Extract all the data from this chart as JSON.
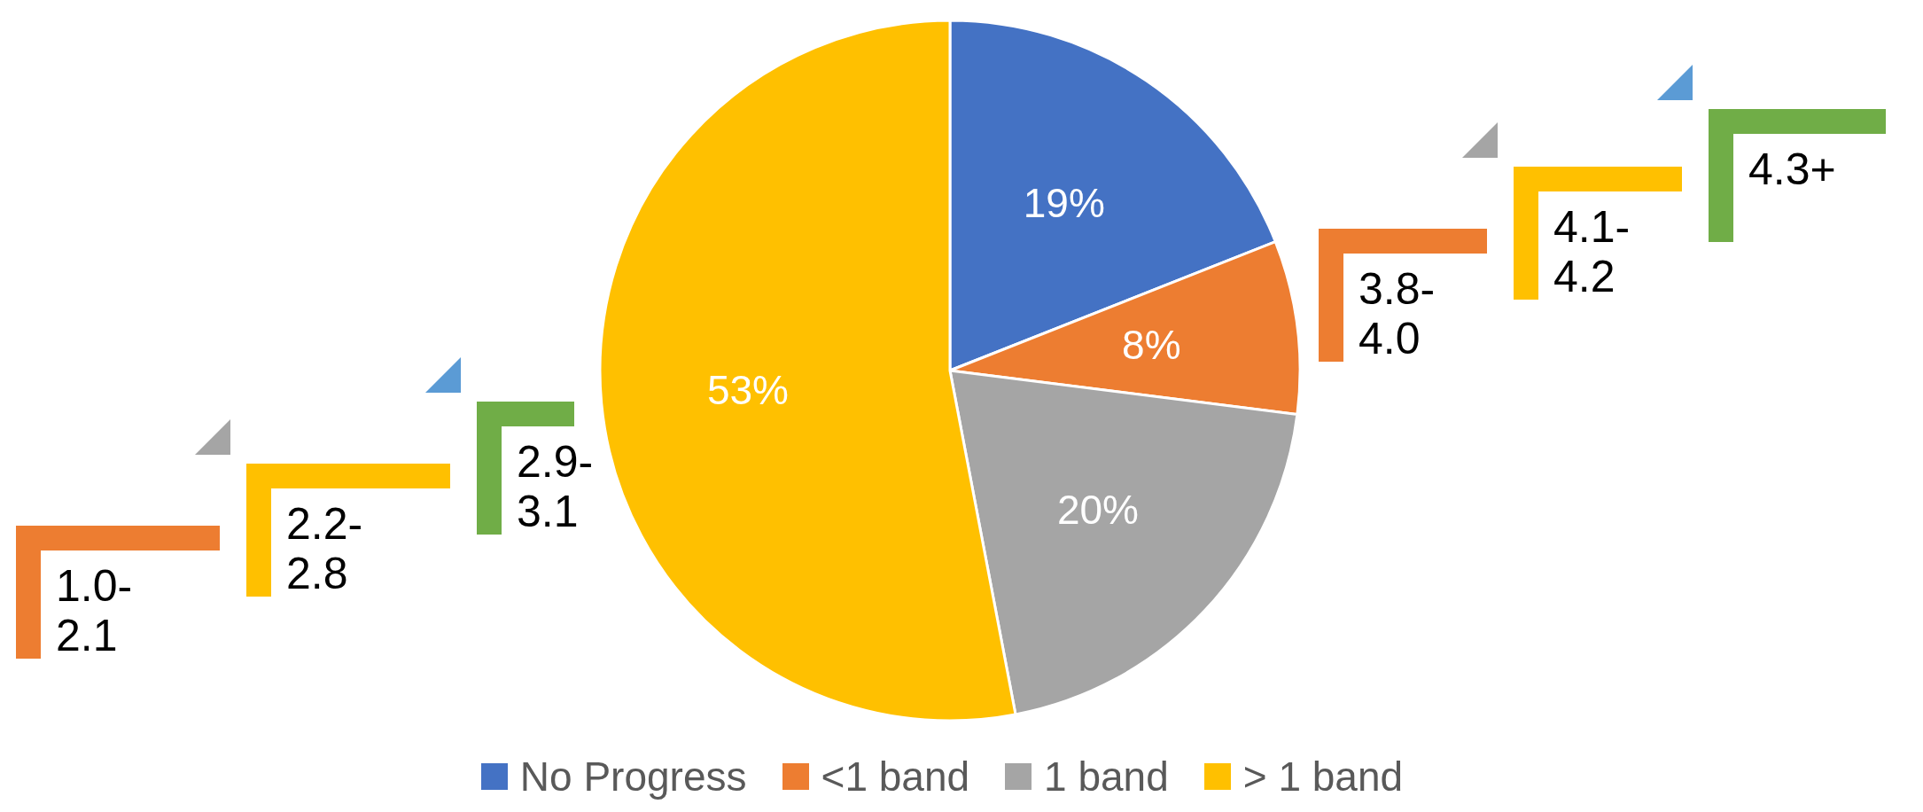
{
  "chart_data": {
    "type": "pie",
    "categories": [
      "No Progress",
      "<1 band",
      "1 band",
      "> 1 band"
    ],
    "values": [
      19,
      8,
      20,
      53
    ],
    "colors": [
      "#4472c4",
      "#ed7d31",
      "#a5a5a5",
      "#ffc000"
    ],
    "value_labels": [
      "19%",
      "8%",
      "20%",
      "53%"
    ],
    "legend": "bottom",
    "annotations": [
      "1.0-2.1",
      "2.2-2.8",
      "2.9-3.1",
      "3.8-4.0",
      "4.1-4.2",
      "4.3+"
    ]
  }
}
